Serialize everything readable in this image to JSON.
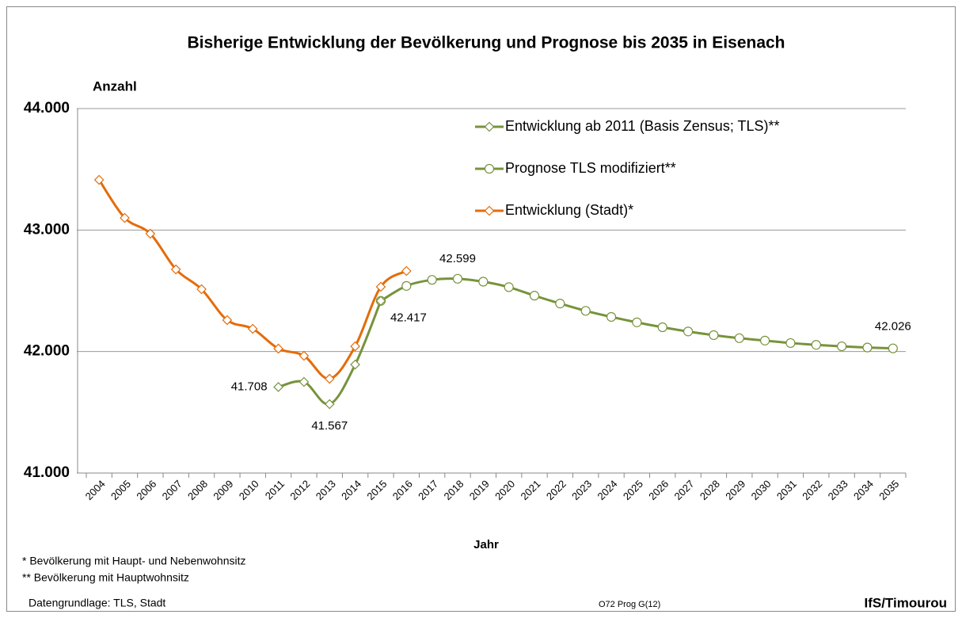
{
  "chart_data": {
    "type": "line",
    "title": "Bisherige Entwicklung der Bevölkerung und Prognose bis 2035 in Eisenach",
    "y_label": "Anzahl",
    "x_label": "Jahr",
    "categories": [
      "2004",
      "2005",
      "2006",
      "2007",
      "2008",
      "2009",
      "2010",
      "2011",
      "2012",
      "2013",
      "2014",
      "2015",
      "2016",
      "2017",
      "2018",
      "2019",
      "2020",
      "2021",
      "2022",
      "2023",
      "2024",
      "2025",
      "2026",
      "2027",
      "2028",
      "2029",
      "2030",
      "2031",
      "2032",
      "2033",
      "2034",
      "2035"
    ],
    "ylim": [
      41000,
      44000
    ],
    "yticks": [
      {
        "value": 41000,
        "label": "41.000"
      },
      {
        "value": 42000,
        "label": "42.000"
      },
      {
        "value": 43000,
        "label": "43.000"
      },
      {
        "value": 44000,
        "label": "44.000"
      }
    ],
    "grid": true,
    "legend": "top-right",
    "series": [
      {
        "name": "Entwicklung ab 2011 (Basis Zensus; TLS)**",
        "color": "#77933c",
        "marker": "diamond",
        "values": [
          null,
          null,
          null,
          null,
          null,
          null,
          null,
          41708,
          41750,
          41567,
          41893,
          42417,
          null,
          null,
          null,
          null,
          null,
          null,
          null,
          null,
          null,
          null,
          null,
          null,
          null,
          null,
          null,
          null,
          null,
          null,
          null,
          null
        ],
        "value_labels": [
          null,
          null,
          null,
          null,
          null,
          null,
          null,
          "41.708",
          null,
          "41.567",
          null,
          "42.417",
          null,
          null,
          null,
          null,
          null,
          null,
          null,
          null,
          null,
          null,
          null,
          null,
          null,
          null,
          null,
          null,
          null,
          null,
          null,
          null
        ]
      },
      {
        "name": "Prognose TLS modifiziert**",
        "color": "#77933c",
        "marker": "circle",
        "values": [
          null,
          null,
          null,
          null,
          null,
          null,
          null,
          null,
          null,
          null,
          null,
          42417,
          42540,
          42590,
          42599,
          42575,
          42530,
          42460,
          42395,
          42335,
          42285,
          42240,
          42200,
          42165,
          42135,
          42110,
          42090,
          42070,
          42055,
          42043,
          42033,
          42026
        ],
        "value_labels": [
          null,
          null,
          null,
          null,
          null,
          null,
          null,
          null,
          null,
          null,
          null,
          null,
          null,
          null,
          "42.599",
          null,
          null,
          null,
          null,
          null,
          null,
          null,
          null,
          null,
          null,
          null,
          null,
          null,
          null,
          null,
          null,
          "42.026"
        ]
      },
      {
        "name": "Entwicklung (Stadt)*",
        "color": "#e46c0a",
        "marker": "diamond",
        "values": [
          43413,
          43100,
          42970,
          42676,
          42513,
          42259,
          42187,
          42024,
          41965,
          41776,
          42043,
          42533,
          42663,
          null,
          null,
          null,
          null,
          null,
          null,
          null,
          null,
          null,
          null,
          null,
          null,
          null,
          null,
          null,
          null,
          null,
          null,
          null
        ]
      }
    ],
    "footnotes": [
      "*   Bevölkerung mit Haupt- und Nebenwohnsitz",
      "**  Bevölkerung mit Hauptwohnsitz"
    ],
    "source": "Datengrundlage: TLS, Stadt",
    "code": "O72 Prog G(12)",
    "author": "IfS/Timourou"
  }
}
